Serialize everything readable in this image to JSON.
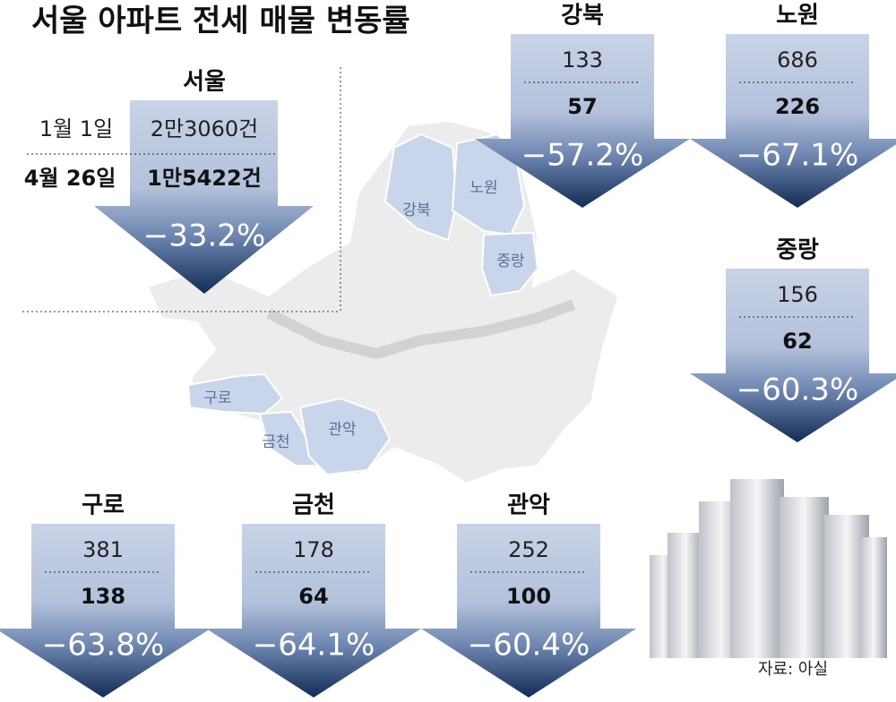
{
  "title": "서울 아파트 전세 매물 변동률",
  "seoul": {
    "name": "서울",
    "date1": "1월 1일",
    "value1": "2만3060건",
    "date2": "4월 26일",
    "value2": "1만5422건",
    "change": "−33.2%"
  },
  "districts": [
    {
      "name": "강북",
      "before": "133",
      "after": "57",
      "change": "−57.2%"
    },
    {
      "name": "노원",
      "before": "686",
      "after": "226",
      "change": "−67.1%"
    },
    {
      "name": "중랑",
      "before": "156",
      "after": "62",
      "change": "−60.3%"
    },
    {
      "name": "구로",
      "before": "381",
      "after": "138",
      "change": "−63.8%"
    },
    {
      "name": "금천",
      "before": "178",
      "after": "64",
      "change": "−64.1%"
    },
    {
      "name": "관악",
      "before": "252",
      "after": "100",
      "change": "−60.4%"
    }
  ],
  "source": "자료: 아실"
}
